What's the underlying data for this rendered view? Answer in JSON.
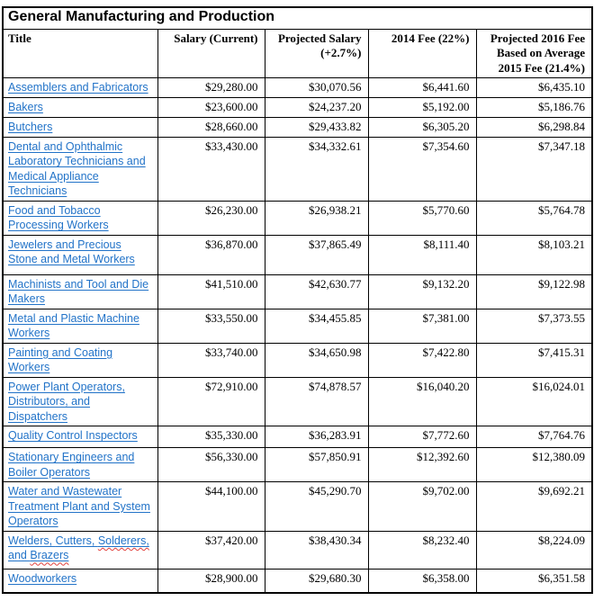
{
  "table": {
    "title": "General Manufacturing and Production",
    "columns": [
      "Title",
      "Salary (Current)",
      "Projected Salary (+2.7%)",
      "2014 Fee (22%)",
      "Projected 2016 Fee Based on Average 2015 Fee (21.4%)"
    ],
    "rows": [
      {
        "title": "Assemblers and Fabricators",
        "salary": "$29,280.00",
        "projected_salary": "$30,070.56",
        "fee_2014": "$6,441.60",
        "fee_2016": "$6,435.10"
      },
      {
        "title": "Bakers",
        "salary": "$23,600.00",
        "projected_salary": "$24,237.20",
        "fee_2014": "$5,192.00",
        "fee_2016": "$5,186.76"
      },
      {
        "title": "Butchers",
        "salary": "$28,660.00",
        "projected_salary": "$29,433.82",
        "fee_2014": "$6,305.20",
        "fee_2016": "$6,298.84"
      },
      {
        "title": "Dental and Ophthalmic Laboratory Technicians and Medical Appliance Technicians",
        "salary": "$33,430.00",
        "projected_salary": "$34,332.61",
        "fee_2014": "$7,354.60",
        "fee_2016": "$7,347.18"
      },
      {
        "title": "Food and Tobacco Processing Workers",
        "salary": "$26,230.00",
        "projected_salary": "$26,938.21",
        "fee_2014": "$5,770.60",
        "fee_2016": "$5,764.78"
      },
      {
        "title": "Jewelers and Precious Stone and Metal Workers",
        "salary": "$36,870.00",
        "projected_salary": "$37,865.49",
        "fee_2014": "$8,111.40",
        "fee_2016": "$8,103.21"
      },
      {
        "title": "Machinists and Tool and Die Makers",
        "salary": "$41,510.00",
        "projected_salary": "$42,630.77",
        "fee_2014": "$9,132.20",
        "fee_2016": "$9,122.98"
      },
      {
        "title": "Metal and Plastic Machine Workers",
        "salary": "$33,550.00",
        "projected_salary": "$34,455.85",
        "fee_2014": "$7,381.00",
        "fee_2016": "$7,373.55"
      },
      {
        "title": "Painting and Coating Workers",
        "salary": "$33,740.00",
        "projected_salary": "$34,650.98",
        "fee_2014": "$7,422.80",
        "fee_2016": "$7,415.31"
      },
      {
        "title": "Power Plant Operators, Distributors, and Dispatchers",
        "salary": "$72,910.00",
        "projected_salary": "$74,878.57",
        "fee_2014": "$16,040.20",
        "fee_2016": "$16,024.01"
      },
      {
        "title": "Quality Control Inspectors",
        "salary": "$35,330.00",
        "projected_salary": "$36,283.91",
        "fee_2014": "$7,772.60",
        "fee_2016": "$7,764.76"
      },
      {
        "title": "Stationary Engineers and Boiler Operators",
        "salary": "$56,330.00",
        "projected_salary": "$57,850.91",
        "fee_2014": "$12,392.60",
        "fee_2016": "$12,380.09"
      },
      {
        "title": "Water and Wastewater Treatment Plant and System Operators",
        "salary": "$44,100.00",
        "projected_salary": "$45,290.70",
        "fee_2014": "$9,702.00",
        "fee_2016": "$9,692.21"
      },
      {
        "title": "Welders, Cutters, Solderers, and Brazers",
        "salary": "$37,420.00",
        "projected_salary": "$38,430.34",
        "fee_2014": "$8,232.40",
        "fee_2016": "$8,224.09",
        "misspelled_words": [
          "Solderers,",
          "Brazers"
        ]
      },
      {
        "title": "Woodworkers",
        "salary": "$28,900.00",
        "projected_salary": "$29,680.30",
        "fee_2014": "$6,358.00",
        "fee_2016": "$6,351.58"
      }
    ]
  },
  "colors": {
    "link_blue": "#2273C8",
    "spellcheck_red": "#E2403C",
    "border_black": "#000000"
  }
}
